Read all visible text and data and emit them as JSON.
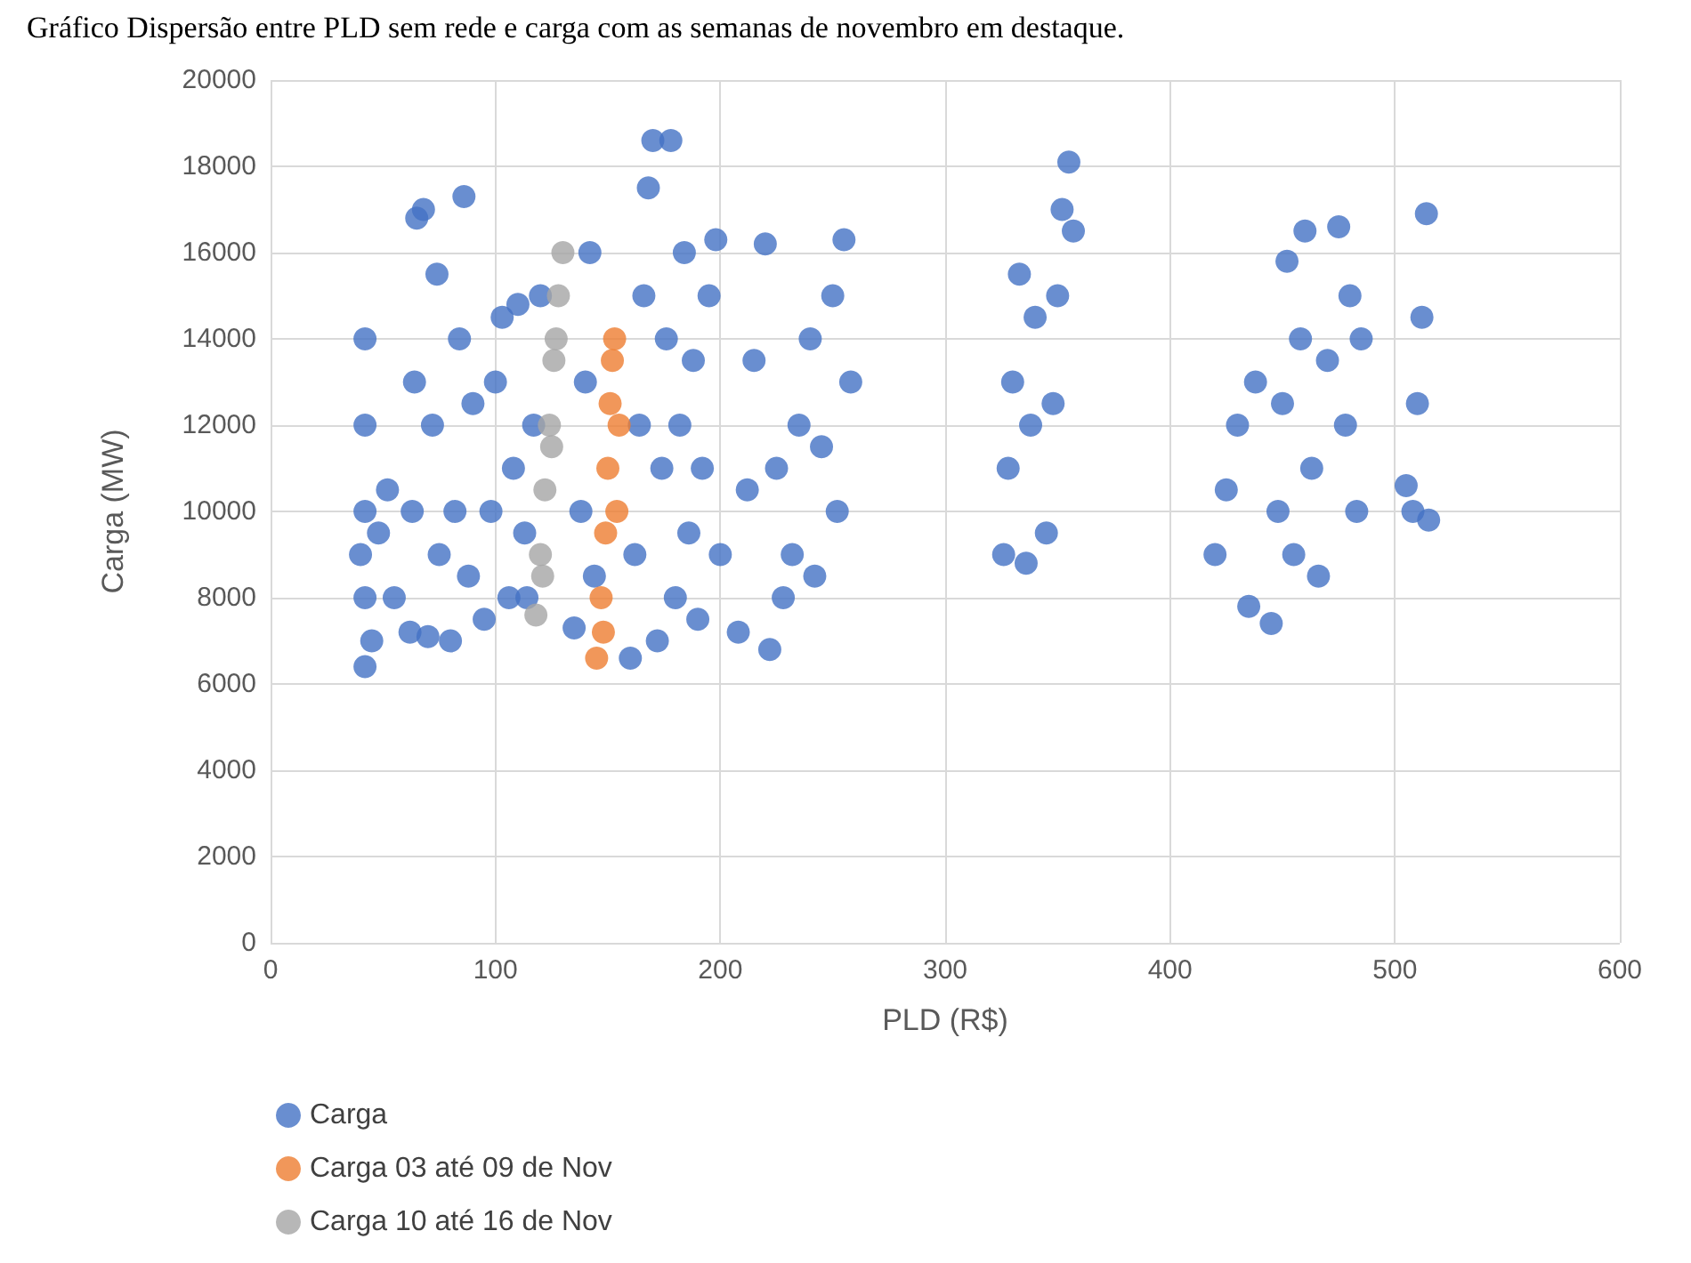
{
  "chart_data": {
    "type": "scatter",
    "title": "Gráfico Dispersão entre PLD sem rede e carga com as semanas de novembro em destaque.",
    "xlabel": "PLD (R$)",
    "ylabel": "Carga (MW)",
    "xlim": [
      0,
      600
    ],
    "xticks": [
      0,
      100,
      200,
      300,
      400,
      500,
      600
    ],
    "ylim": [
      0,
      20000
    ],
    "yticks": [
      0,
      2000,
      4000,
      6000,
      8000,
      10000,
      12000,
      14000,
      16000,
      18000,
      20000
    ],
    "grid": true,
    "legend": "bottom left",
    "marker": "circle",
    "series": [
      {
        "name": "Carga",
        "color": "#4472c4",
        "x": [
          42,
          42,
          42,
          42,
          42,
          40,
          45,
          48,
          52,
          55,
          62,
          63,
          64,
          65,
          68,
          70,
          72,
          74,
          75,
          80,
          82,
          84,
          86,
          88,
          90,
          95,
          98,
          100,
          103,
          106,
          108,
          110,
          114,
          117,
          120,
          113,
          135,
          138,
          140,
          142,
          144,
          160,
          162,
          164,
          166,
          168,
          170,
          172,
          174,
          176,
          178,
          180,
          182,
          184,
          186,
          188,
          190,
          192,
          195,
          198,
          200,
          208,
          212,
          215,
          220,
          222,
          225,
          228,
          232,
          235,
          240,
          242,
          245,
          250,
          255,
          258,
          252,
          326,
          328,
          330,
          333,
          336,
          338,
          340,
          345,
          348,
          350,
          352,
          355,
          357,
          420,
          425,
          430,
          435,
          438,
          445,
          448,
          450,
          452,
          455,
          458,
          460,
          463,
          466,
          470,
          475,
          478,
          480,
          483,
          485,
          505,
          508,
          510,
          512,
          514,
          515
        ],
        "values": [
          6400,
          8000,
          10000,
          12000,
          14000,
          9000,
          7000,
          9500,
          10500,
          8000,
          7200,
          10000,
          13000,
          16800,
          17000,
          7100,
          12000,
          15500,
          9000,
          7000,
          10000,
          14000,
          17300,
          8500,
          12500,
          7500,
          10000,
          13000,
          14500,
          8000,
          11000,
          14800,
          8000,
          12000,
          15000,
          9500,
          7300,
          10000,
          13000,
          16000,
          8500,
          6600,
          9000,
          12000,
          15000,
          17500,
          18600,
          7000,
          11000,
          14000,
          18600,
          8000,
          12000,
          16000,
          9500,
          13500,
          7500,
          11000,
          15000,
          16300,
          9000,
          7200,
          10500,
          13500,
          16200,
          6800,
          11000,
          8000,
          9000,
          12000,
          14000,
          8500,
          11500,
          15000,
          16300,
          13000,
          10000,
          9000,
          11000,
          13000,
          15500,
          8800,
          12000,
          14500,
          9500,
          12500,
          15000,
          17000,
          18100,
          16500,
          9000,
          10500,
          12000,
          7800,
          13000,
          7400,
          10000,
          12500,
          15800,
          9000,
          14000,
          16500,
          11000,
          8500,
          13500,
          16600,
          12000,
          15000,
          10000,
          14000,
          10600,
          10000,
          12500,
          14500,
          16900,
          9800
        ]
      },
      {
        "name": "Carga 03 até 09 de Nov",
        "color": "#ed7d31",
        "x": [
          145,
          147,
          149,
          150,
          151,
          152,
          153,
          155,
          154,
          148
        ],
        "values": [
          6600,
          8000,
          9500,
          11000,
          12500,
          13500,
          14000,
          12000,
          10000,
          7200
        ]
      },
      {
        "name": "Carga 10 até 16 de Nov",
        "color": "#a5a5a5",
        "x": [
          118,
          120,
          122,
          124,
          126,
          128,
          130,
          125,
          127,
          121
        ],
        "values": [
          7600,
          9000,
          10500,
          12000,
          13500,
          15000,
          16000,
          11500,
          14000,
          8500
        ]
      }
    ]
  }
}
